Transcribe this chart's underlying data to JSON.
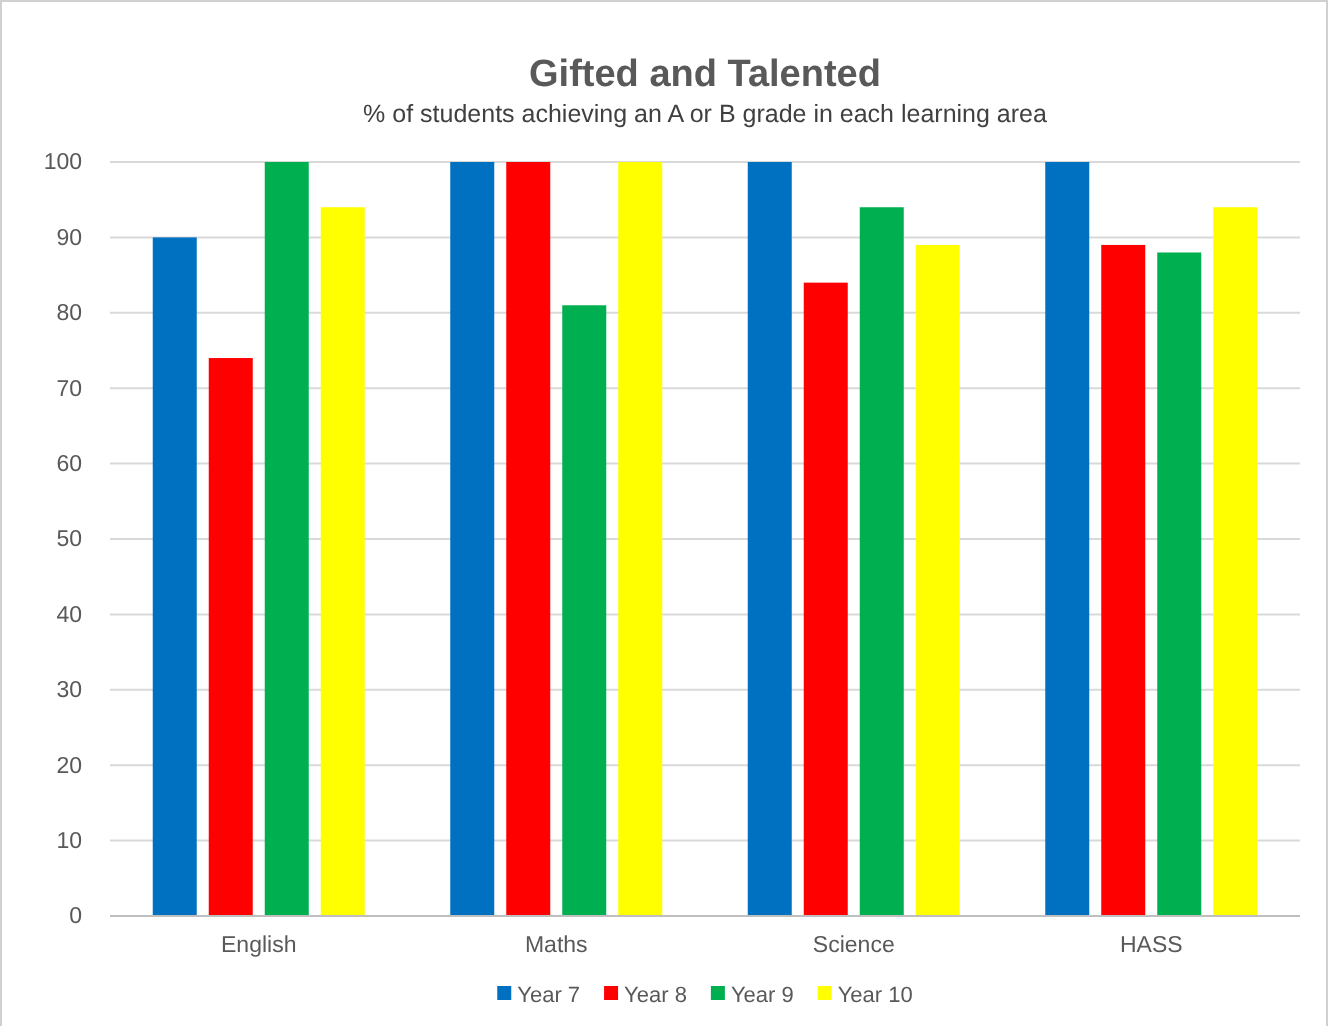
{
  "chart_data": {
    "type": "bar",
    "title": "Gifted and Talented",
    "subtitle": "% of students achieving an A or B grade in each learning area",
    "categories": [
      "English",
      "Maths",
      "Science",
      "HASS"
    ],
    "series": [
      {
        "name": "Year 7",
        "color": "#0070c0",
        "values": [
          90,
          100,
          100,
          100
        ]
      },
      {
        "name": "Year 8",
        "color": "#ff0000",
        "values": [
          74,
          100,
          84,
          89
        ]
      },
      {
        "name": "Year 9",
        "color": "#00b050",
        "values": [
          100,
          81,
          94,
          88
        ]
      },
      {
        "name": "Year 10",
        "color": "#ffff00",
        "values": [
          94,
          100,
          89,
          94
        ]
      }
    ],
    "ylim": [
      0,
      100
    ],
    "yticks": [
      0,
      10,
      20,
      30,
      40,
      50,
      60,
      70,
      80,
      90,
      100
    ],
    "grid": "y",
    "legend": "bottom"
  }
}
